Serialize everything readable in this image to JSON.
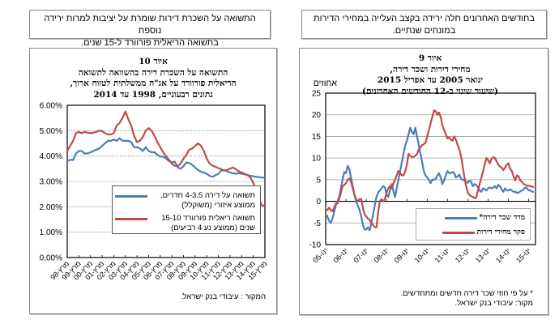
{
  "left_panel": {
    "callout": [
      "התשואה על השכרת דירות שומרת על יציבות למרות ירידה נוספת",
      "בתשואה הריאלית פורוורד ל-15 שנים."
    ],
    "title": [
      "איור 10",
      "התשואה על השכרת דירה בהשוואה לתשואה",
      "הריאלית פורוורד על אג\"ח ממשלתית לטווח ארוך,",
      "נתונים רבעוניים, 1998 עד 2014"
    ],
    "source": "המקור : עיבודי בנק ישראל."
  },
  "right_panel": {
    "callout": [
      "בחודשים האחרונים חלה ירידה בקצב העלייה במחירי הדירות",
      "במונחים שנתיים."
    ],
    "title": [
      "איור 9",
      "מחירי דירות ושכר דירה,",
      "ינואר 2005 עד אפריל 2015",
      "(שיעור שינוי ב-12 החודשים האחרונים)"
    ],
    "unit_label": "אחוזים",
    "footnote": "* על פי חוזי שכר דירה חדשים ומתחדשים.",
    "source": "מקור: עיבודי בנק ישראל."
  },
  "chart_data": [
    {
      "type": "line",
      "title": "התשואה על השכרת דירה בהשוואה לתשואה הריאלית פורוורד על אג\"ח ממשלתית לטווח ארוך, נתונים רבעוניים, 1998 עד 2014",
      "xlabel": "",
      "ylabel": "",
      "ylim": [
        0,
        6
      ],
      "yticks": [
        0,
        1,
        2,
        3,
        4,
        5,
        6
      ],
      "ytick_labels": [
        "0.00%",
        "1.00%",
        "2.00%",
        "3.00%",
        "4.00%",
        "5.00%",
        "6.00%"
      ],
      "xtick_labels": [
        "מרץ-98",
        "מרץ-99",
        "מרץ-00",
        "מרץ-01",
        "מרץ-02",
        "מרץ-03",
        "מרץ-04",
        "מרץ-05",
        "מרץ-06",
        "מרץ-07",
        "מרץ-08",
        "מרץ-09",
        "מרץ-10",
        "מרץ-11",
        "מרץ-12",
        "מרץ-13",
        "מרץ-14",
        "מרץ-15"
      ],
      "x_start": 1998.0,
      "x_step": 0.25,
      "grid": true,
      "legend_position": "center-right",
      "series": [
        {
          "name": "תשואה על דירה 4-3.5 חדרים, ממוצע איזורי (משוקלל)",
          "color": "#4a7ebb",
          "values": [
            3.8,
            3.85,
            3.85,
            4.1,
            4.2,
            4.2,
            4.1,
            4.1,
            4.15,
            4.2,
            4.25,
            4.3,
            4.4,
            4.5,
            4.6,
            4.6,
            4.65,
            4.6,
            4.7,
            4.6,
            4.6,
            4.6,
            4.55,
            4.35,
            4.35,
            4.3,
            4.2,
            4.35,
            4.2,
            4.15,
            4.15,
            4.05,
            3.98,
            3.98,
            3.9,
            3.8,
            3.75,
            3.78,
            3.55,
            3.5,
            3.6,
            3.75,
            3.72,
            3.65,
            3.55,
            3.45,
            3.38,
            3.35,
            3.3,
            3.22,
            3.18,
            3.25,
            3.3,
            3.42,
            3.45,
            3.4,
            3.35,
            3.32,
            3.3,
            3.33,
            3.3,
            3.28,
            3.25,
            3.22,
            3.2,
            3.18,
            3.17,
            3.15,
            3.15
          ]
        },
        {
          "name": "תשואה ריאלית פורוורד 15-10 שנים (ממוצע נע 4 רביעים)",
          "color": "#be4b48",
          "values": [
            4.2,
            4.4,
            4.6,
            4.9,
            4.95,
            4.9,
            4.95,
            4.92,
            4.9,
            4.92,
            4.95,
            5.0,
            4.98,
            4.9,
            4.85,
            4.85,
            4.9,
            5.2,
            5.3,
            5.5,
            5.75,
            5.45,
            5.2,
            4.8,
            4.55,
            4.6,
            4.75,
            5.0,
            5.1,
            5.0,
            4.8,
            4.55,
            4.35,
            4.15,
            4.0,
            3.85,
            3.7,
            3.62,
            3.6,
            3.7,
            3.9,
            4.05,
            4.25,
            4.3,
            4.4,
            4.5,
            4.4,
            4.2,
            3.9,
            3.7,
            3.62,
            3.58,
            3.52,
            3.48,
            3.42,
            3.45,
            3.5,
            3.55,
            3.48,
            3.4,
            3.35,
            3.3,
            3.25,
            3.15,
            2.95,
            2.6,
            2.3,
            2.05,
            2.05
          ]
        }
      ]
    },
    {
      "type": "line",
      "title": "מחירי דירות ושכר דירה, ינואר 2005 עד אפריל 2015 (שיעור שינוי ב-12 החודשים האחרונים)",
      "xlabel": "",
      "ylabel": "אחוזים",
      "ylim": [
        -10,
        25
      ],
      "yticks": [
        -10,
        -5,
        0,
        5,
        10,
        15,
        20,
        25
      ],
      "ytick_labels": [
        "-10",
        "-5",
        "0",
        "5",
        "10",
        "15",
        "20",
        "25"
      ],
      "xtick_labels": [
        "ינו-05",
        "ינו-06",
        "ינו-07",
        "ינו-08",
        "ינו-09",
        "ינו-10",
        "ינו-11",
        "ינו-12",
        "ינו-13",
        "ינו-14",
        "ינו-15"
      ],
      "x_start": 2005.0,
      "x_step": 0.0833333,
      "grid": true,
      "legend_position": "bottom-right",
      "series": [
        {
          "name": "מדד שכר דירה*",
          "color": "#4a7ebb",
          "values": [
            -3,
            -3.5,
            -4.5,
            -5,
            -4,
            -2.5,
            -1,
            0,
            1,
            3,
            5,
            6.8,
            6.5,
            8.2,
            7.5,
            5.5,
            3.5,
            1.5,
            0,
            -1,
            -2,
            -3.5,
            -5.5,
            -6.5,
            -6.5,
            -6,
            -6.7,
            -5,
            -3,
            -1,
            1,
            2,
            2.5,
            3,
            3.5,
            3.2,
            1.5,
            1,
            2.5,
            4,
            2.5,
            1,
            3,
            5,
            7,
            9,
            11,
            13,
            14,
            15.5,
            17,
            16,
            15.5,
            17,
            15,
            13,
            11,
            9,
            7,
            6,
            5.5,
            5,
            4.2,
            5,
            5,
            5.2,
            6,
            6.5,
            5.5,
            4,
            4.8,
            6,
            7,
            6.5,
            6.5,
            6.8,
            6.5,
            5.5,
            5.8,
            6.2,
            5.2,
            5,
            4.8,
            4.5,
            4.3,
            4.8,
            4.5,
            3.5,
            4,
            3.8,
            3.2,
            2.5,
            2.2,
            3,
            2.8,
            2.5,
            3,
            3.2,
            3,
            3.2,
            3.5,
            3,
            3.8,
            3.5,
            2.8,
            2.2,
            3,
            2.5,
            2.5,
            2.8,
            2.5,
            2.2,
            2.2,
            2,
            2,
            2.3,
            2.5,
            2.8,
            3.2,
            3,
            2.5,
            2.5,
            2.2,
            2.2
          ]
        },
        {
          "name": "סקר מחירי דירות",
          "color": "#be4b48",
          "values": [
            -2,
            -2,
            -1.5,
            -2,
            -2.3,
            -1.5,
            -0.5,
            -0.5,
            0.5,
            2,
            3.5,
            3.8,
            4.2,
            5,
            5.3,
            4.5,
            3,
            1.5,
            0.5,
            0,
            0.5,
            0.5,
            -1.5,
            -3,
            -3.5,
            -4,
            -4.3,
            -5,
            -5.5,
            -6,
            -6,
            -2.5,
            0,
            0.5,
            0,
            0.5,
            2,
            3,
            3.5,
            3,
            4,
            5,
            6,
            7,
            6.5,
            6,
            6,
            7,
            8.5,
            11,
            10.5,
            10.2,
            10.3,
            10.5,
            11,
            12,
            12.5,
            13,
            13.2,
            13.5,
            15,
            16.5,
            18,
            19.5,
            21,
            20.8,
            20,
            20.5,
            19.5,
            17.5,
            16.5,
            15.5,
            14.5,
            14.8,
            14.3,
            14,
            15,
            14.2,
            13,
            12,
            10.5,
            8,
            5.5,
            3.5,
            2,
            1.5,
            1.2,
            1,
            0.7,
            0.9,
            2.5,
            4,
            5.5,
            7,
            8.5,
            10,
            9.5,
            8.8,
            9.8,
            10.2,
            10,
            9.2,
            8.5,
            8,
            7.8,
            7.2,
            7.8,
            8.5,
            8.8,
            7.5,
            7,
            5.8,
            4.8,
            6,
            5.8,
            4.8,
            4.5,
            4,
            3.8,
            3.6,
            3.6,
            3.5,
            3.4,
            3.3
          ]
        }
      ]
    }
  ]
}
